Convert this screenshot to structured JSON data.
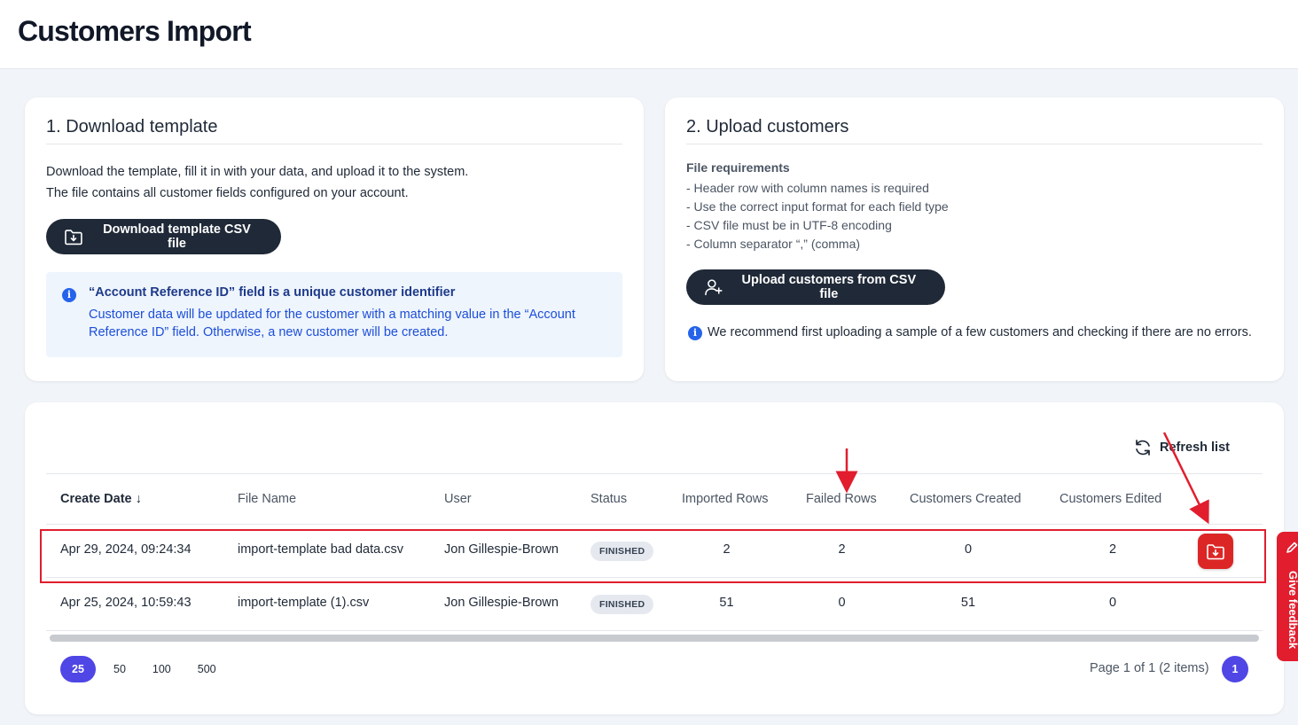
{
  "header": {
    "title": "Customers Import"
  },
  "download_card": {
    "heading": "1. Download template",
    "line1": "Download the template, fill it in with your data, and upload it to the system.",
    "line2": "The file contains all customer fields configured on your account.",
    "button_label": "Download template CSV file",
    "button_icon": "download-icon",
    "info_title": "“Account Reference ID” field is a unique customer identifier",
    "info_text": "Customer data will be updated for the customer with a matching value in the “Account Reference ID” field. Otherwise, a new customer will be created."
  },
  "upload_card": {
    "heading": "2. Upload customers",
    "requirements_title": "File requirements",
    "requirements": [
      "- Header row with column names is required",
      "- Use the correct input format for each field type",
      "- CSV file must be in UTF-8 encoding",
      "- Column separator “,” (comma)"
    ],
    "button_label": "Upload customers from CSV file",
    "button_icon": "add-user-icon",
    "note": "We recommend first uploading a sample of a few customers and checking if there are no errors."
  },
  "imports": {
    "refresh_label": "Refresh list",
    "columns": [
      "Create Date ↓",
      "File Name",
      "User",
      "Status",
      "Imported Rows",
      "Failed Rows",
      "Customers Created",
      "Customers Edited"
    ],
    "rows": [
      {
        "date": "Apr 29, 2024, 09:24:34",
        "file": "import-template bad data.csv",
        "user": "Jon Gillespie-Brown",
        "status": "FINISHED",
        "imported": "2",
        "failed": "2",
        "created": "0",
        "edited": "2"
      },
      {
        "date": "Apr 25, 2024, 10:59:43",
        "file": "import-template (1).csv",
        "user": "Jon Gillespie-Brown",
        "status": "FINISHED",
        "imported": "51",
        "failed": "0",
        "created": "51",
        "edited": "0"
      }
    ],
    "page_sizes": [
      "25",
      "50",
      "100",
      "500"
    ],
    "active_page_size": "25",
    "page_info": "Page 1 of 1 (2 items)",
    "current_page": "1"
  },
  "feedback": {
    "label": "Give feedback"
  },
  "colors": {
    "dark": "#1f2937",
    "accent": "#4f46e5",
    "danger": "#dc2626",
    "info_bg": "#eef5fd"
  }
}
